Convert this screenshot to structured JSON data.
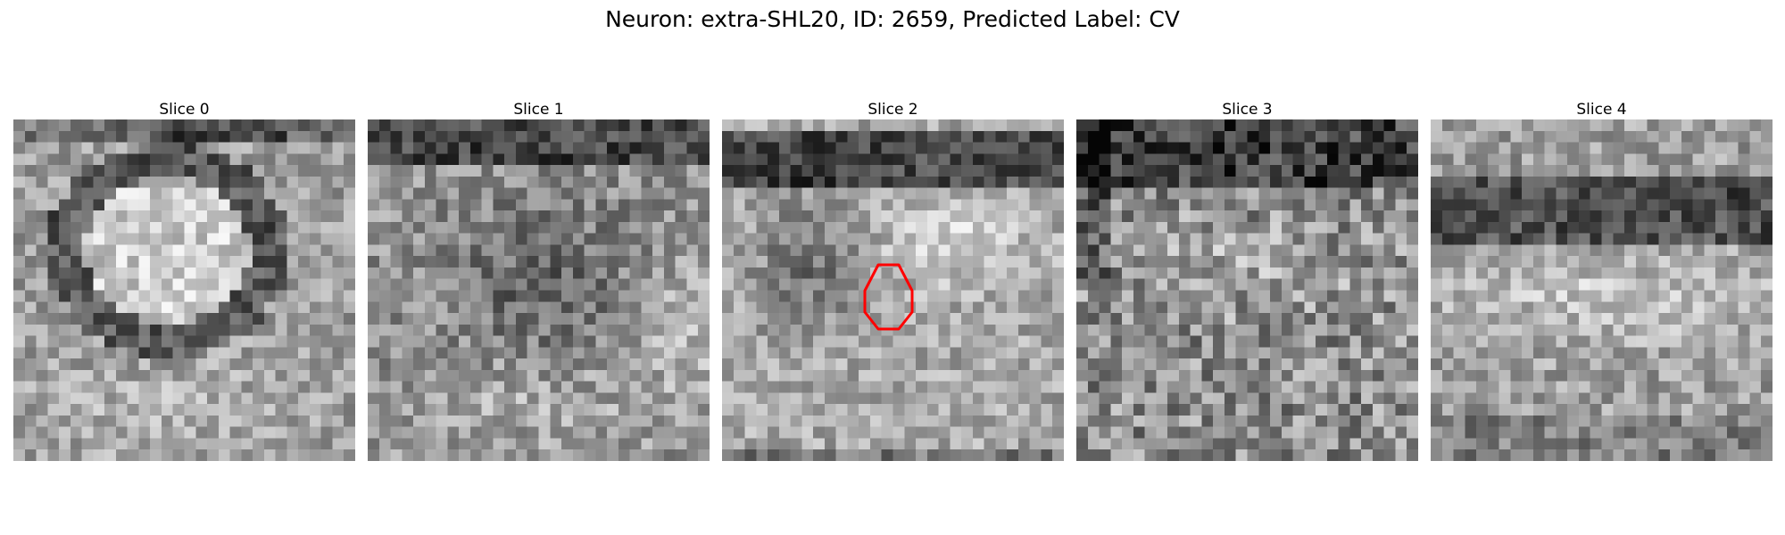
{
  "figure": {
    "title": "Neuron: extra-SHL20, ID: 2659, Predicted Label: CV"
  },
  "colormap": "gray",
  "roi_color": "#ff0000",
  "slices": [
    {
      "label": "Slice 0",
      "pattern": "bright-cell-dark-rim-top"
    },
    {
      "label": "Slice 1",
      "pattern": "dark-band-top-mottled"
    },
    {
      "label": "Slice 2",
      "pattern": "dark-band-top-with-roi",
      "roi": true
    },
    {
      "label": "Slice 3",
      "pattern": "dark-top-noisy"
    },
    {
      "label": "Slice 4",
      "pattern": "dark-band-upper-bright-middle"
    }
  ]
}
